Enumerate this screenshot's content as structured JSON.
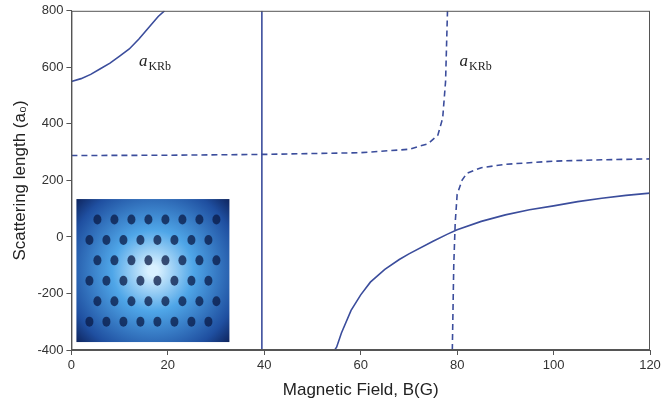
{
  "chart_data": {
    "type": "line",
    "x_label": "Magnetic Field, B(G)",
    "y_label": "Scattering length (a₀)",
    "xlim": [
      0,
      120
    ],
    "xticks": [
      0,
      20,
      40,
      60,
      80,
      100,
      120
    ],
    "ylim": [
      -400,
      800
    ],
    "yticks": [
      -400,
      -200,
      0,
      200,
      400,
      600,
      800
    ],
    "grid": false,
    "annotations": [
      {
        "text": "a",
        "subscript": "KRb",
        "x": 14,
        "y": 604
      },
      {
        "text": "a",
        "subscript": "KRb",
        "x": 80.5,
        "y": 604
      }
    ],
    "series": [
      {
        "color": "#3b4d9c",
        "line_style": "solid",
        "x": [
          0,
          2,
          4,
          6,
          8,
          10,
          12,
          14,
          16,
          18,
          19.3
        ],
        "values": [
          550,
          560,
          575,
          595,
          615,
          640,
          665,
          700,
          740,
          780,
          800
        ]
      },
      {
        "color": "#3b4d9c",
        "line_style": "solid",
        "x": [
          54.6,
          55,
          56,
          58,
          60,
          62,
          65,
          68,
          70,
          75,
          78,
          80,
          85,
          90,
          95,
          100,
          105,
          110,
          115,
          120
        ],
        "values": [
          -400,
          -390,
          -340,
          -260,
          -205,
          -160,
          -115,
          -80,
          -60,
          -15,
          10,
          25,
          55,
          78,
          96,
          110,
          125,
          137,
          147,
          155
        ]
      },
      {
        "color": "#3b4d9c",
        "line_style": "solid",
        "x": [
          39.5,
          39.5
        ],
        "values": [
          -400,
          800
        ]
      },
      {
        "color": "#3b4d9c",
        "line_style": "dashed",
        "x": [
          0,
          20,
          40,
          60,
          70,
          74,
          76,
          77,
          77.6,
          78
        ],
        "values": [
          288,
          289,
          292,
          298,
          310,
          330,
          360,
          420,
          550,
          800
        ]
      },
      {
        "color": "#3b4d9c",
        "line_style": "dashed",
        "x": [
          79,
          79.3,
          79.6,
          80,
          81,
          82,
          85,
          90,
          100,
          110,
          120
        ],
        "values": [
          -400,
          -100,
          50,
          150,
          200,
          225,
          245,
          257,
          268,
          273,
          276
        ]
      }
    ]
  }
}
